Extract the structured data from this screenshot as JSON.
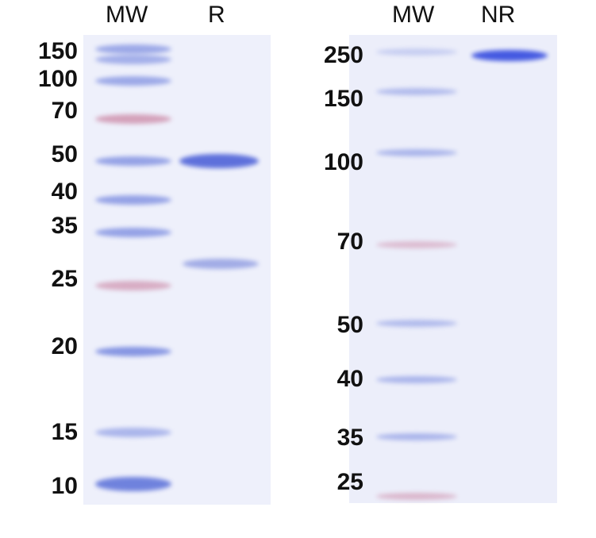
{
  "left_panel": {
    "lanes": [
      "MW",
      "R"
    ],
    "markers": [
      "150",
      "100",
      "70",
      "50",
      "40",
      "35",
      "25",
      "20",
      "15",
      "10"
    ]
  },
  "right_panel": {
    "lanes": [
      "MW",
      "NR"
    ],
    "markers": [
      "250",
      "150",
      "100",
      "70",
      "50",
      "40",
      "35",
      "25"
    ]
  },
  "colors": {
    "band_blue": "#5a6fd8",
    "band_pink": "#c9809f",
    "gel_background": "#eef0fb"
  }
}
